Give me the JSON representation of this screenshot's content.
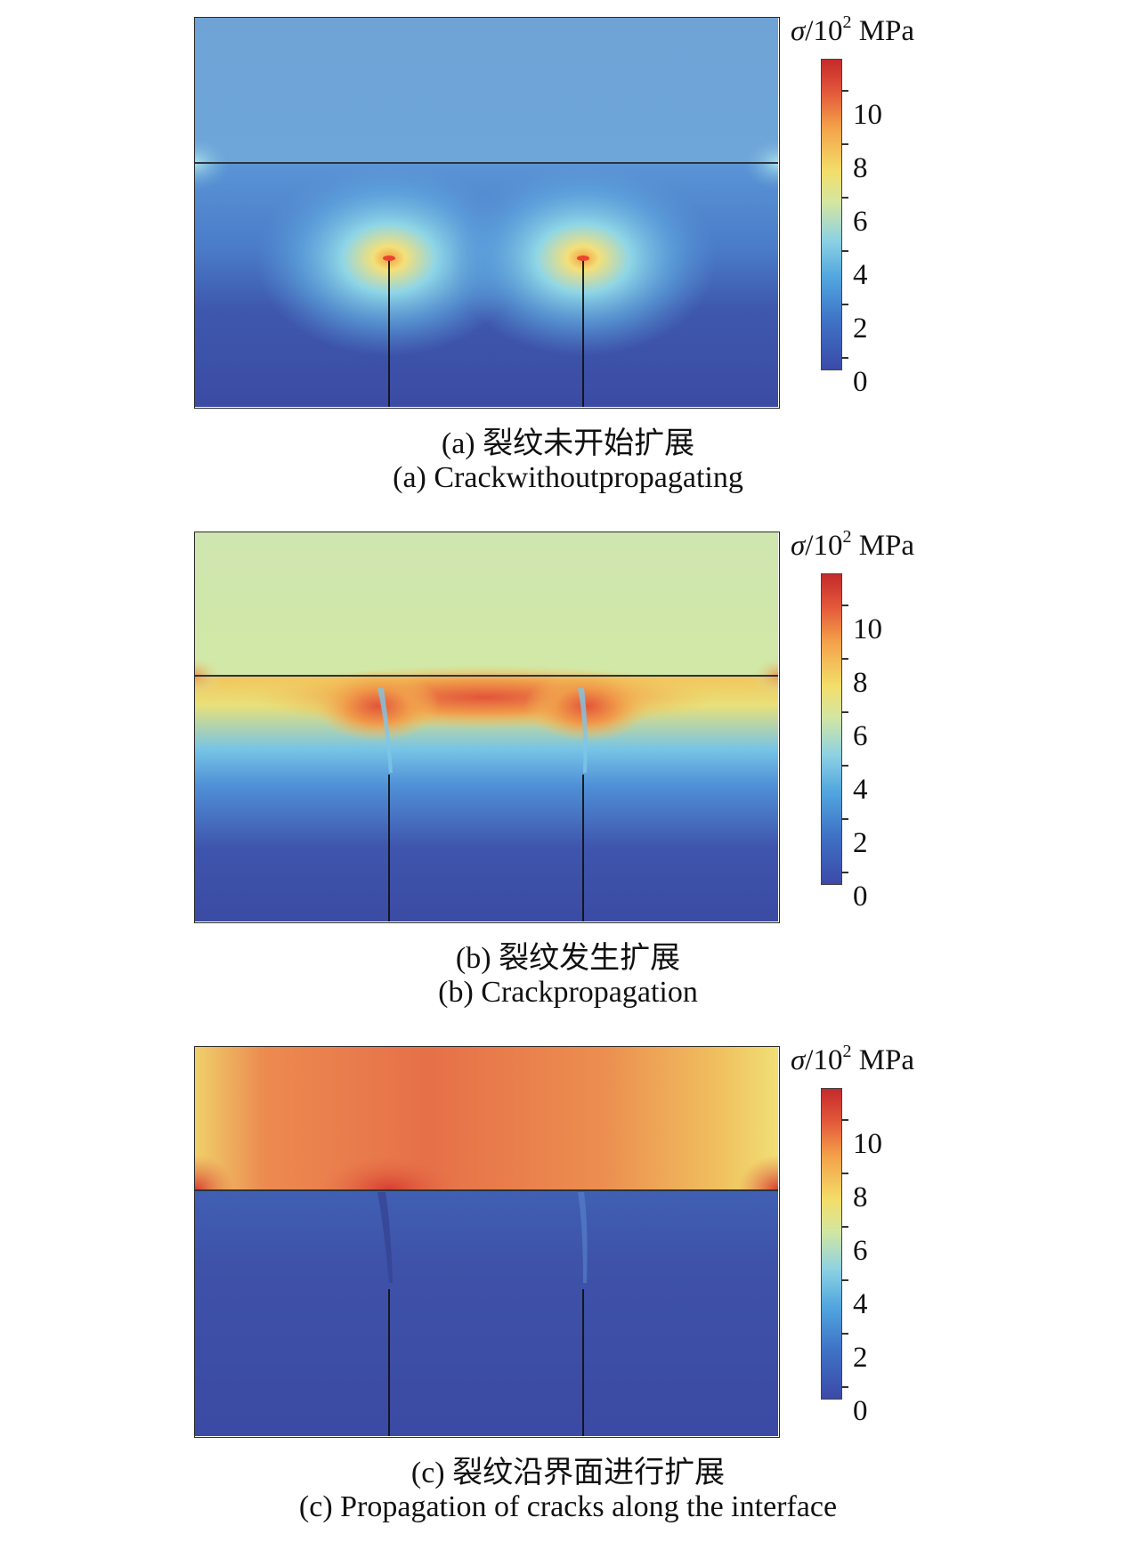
{
  "colorbar": {
    "symbol": "σ",
    "unit_prefix": "/10",
    "exponent": "2",
    "unit": "MPa",
    "ticks": [
      "0",
      "2",
      "4",
      "6",
      "8",
      "10"
    ]
  },
  "panels": [
    {
      "caption_cn": "(a) 裂纹未开始扩展",
      "caption_en": "(a) Crackwithoutpropagating"
    },
    {
      "caption_cn": "(b) 裂纹发生扩展",
      "caption_en": "(b) Crackpropagation"
    },
    {
      "caption_cn": "(c) 裂纹沿界面进行扩展",
      "caption_en": "(c) Propagation of cracks along the interface"
    }
  ]
}
